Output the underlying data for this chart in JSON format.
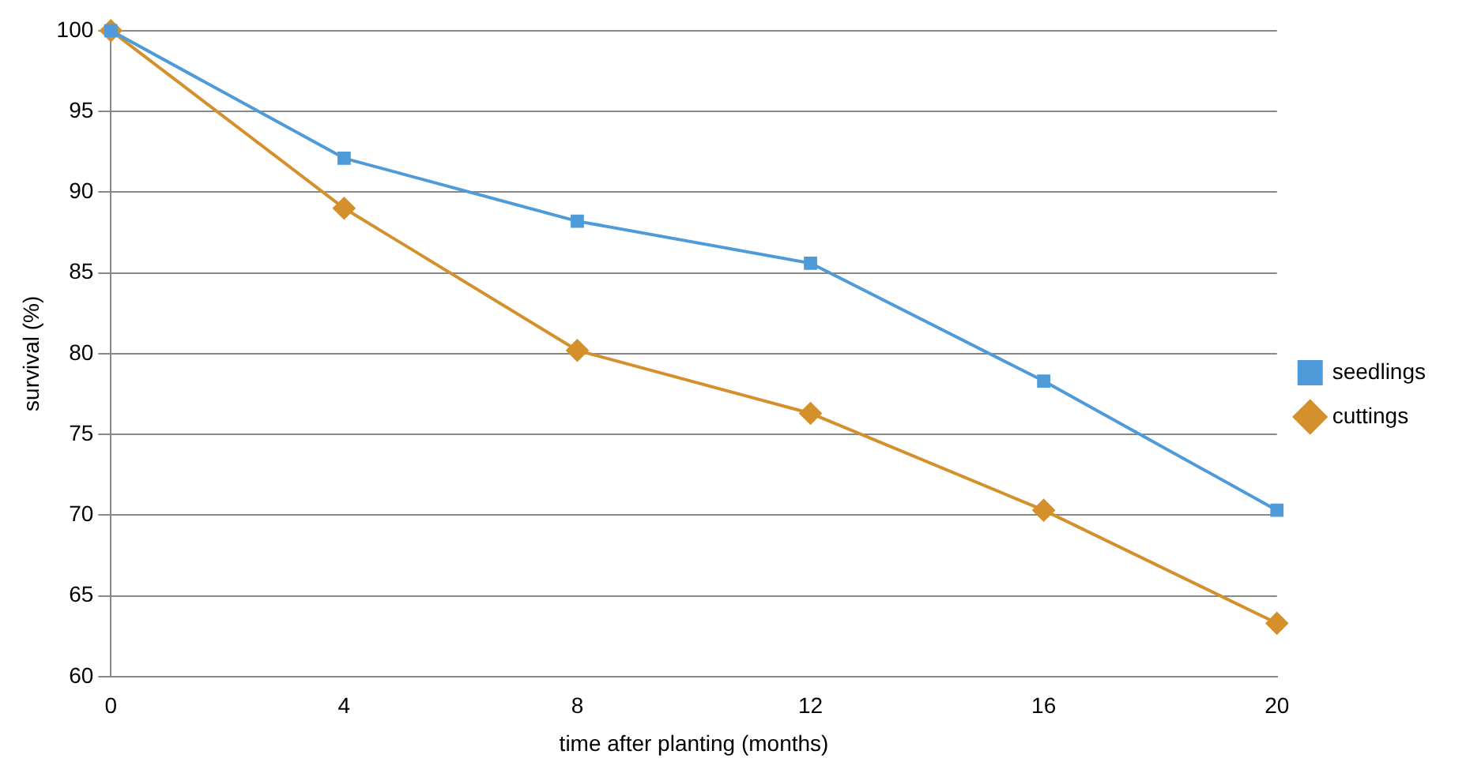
{
  "chart_data": {
    "type": "line",
    "xlabel": "time after planting (months)",
    "ylabel": "survival (%)",
    "x": [
      0,
      4,
      8,
      12,
      16,
      20
    ],
    "xlim": [
      0,
      20
    ],
    "xticks": [
      0,
      4,
      8,
      12,
      16,
      20
    ],
    "ylim": [
      60,
      100
    ],
    "yticks": [
      60,
      65,
      70,
      75,
      80,
      85,
      90,
      95,
      100
    ],
    "grid": "y",
    "legend": "right",
    "line_style": "solid",
    "series": [
      {
        "name": "cuttings",
        "color": "#d4902c",
        "marker": "diamond",
        "values": [
          100,
          89,
          80.2,
          76.3,
          70.3,
          63.3
        ]
      },
      {
        "name": "seedlings",
        "color": "#4f9ad8",
        "marker": "square",
        "values": [
          100,
          92.1,
          88.2,
          85.6,
          78.3,
          70.3
        ]
      }
    ]
  }
}
